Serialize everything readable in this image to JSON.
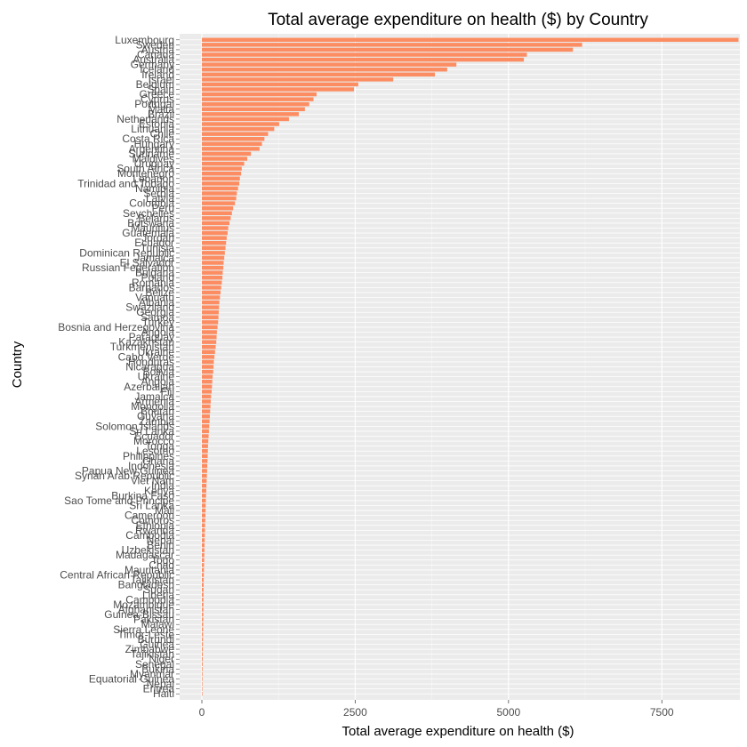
{
  "chart_data": {
    "type": "bar",
    "orientation": "horizontal",
    "title": "Total average expenditure on health ($) by Country",
    "xlabel": "Total average expenditure on health ($)",
    "ylabel": "Country",
    "xlim": [
      0,
      8700
    ],
    "xticks": [
      0,
      2500,
      5000,
      7500
    ],
    "xtick_labels": [
      "0",
      "2500",
      "5000",
      "7500"
    ],
    "grid": true,
    "bar_color": "#fc8d62",
    "panel_color": "#ebebeb",
    "categories": [
      "Luxembourg",
      "Sweden",
      "Austria",
      "Canada",
      "Australia",
      "Germany",
      "Iceland",
      "Ireland",
      "Israel",
      "Belgium",
      "Spain",
      "Greece",
      "Cyprus",
      "Portugal",
      "Malta",
      "Brazil",
      "Netherlands",
      "Estonia",
      "Lithuania",
      "Chile",
      "Costa Rica",
      "Hungary",
      "Argentina",
      "Suriname",
      "Maldives",
      "Uruguay",
      "South Africa",
      "Montenegro",
      "Lebanon",
      "Trinidad and Tobago",
      "Namibia",
      "Serbia",
      "Latvia",
      "Colombia",
      "Peru",
      "Seychelles",
      "Belarus",
      "Botswana",
      "Mauritius",
      "Guatemala",
      "Jordan",
      "Ecuador",
      "Tunisia",
      "Dominican Republic",
      "Jamaica",
      "El Salvador",
      "Russian Federation",
      "Bulgaria",
      "Poland",
      "Romania",
      "Barbados",
      "Belize",
      "Vanuatu",
      "Albania",
      "Swaziland",
      "Georgia",
      "Samoa",
      "Turkey",
      "Bosnia and Herzegovina",
      "Angola",
      "Paraguay",
      "Kazakhstan",
      "Turkmenistan",
      "Ukraine",
      "Cabo Verde",
      "Honduras",
      "Nicaragua",
      "Bolivia",
      "Ukraine",
      "Angola",
      "Azerbaijan",
      "Fiji",
      "Jamaica",
      "Armenia",
      "Mongolia",
      "Bhutan",
      "Guyana",
      "Zambia",
      "Solomon Islands",
      "Sri Lanka",
      "Ecuador",
      "Morocco",
      "Tonga",
      "Lesotho",
      "Philippines",
      "Ghana",
      "Indonesia",
      "Papua New Guinea",
      "Syrian Arab Republic",
      "Viet Nam",
      "India",
      "Kenya",
      "Burkina Faso",
      "Sao Tome and Principe",
      "Sri Lanka",
      "Mali",
      "Cameroon",
      "Comoros",
      "Ethiopia",
      "Rwanda",
      "Cambodia",
      "Nepal",
      "Benin",
      "Uzbekistan",
      "Madagascar",
      "Togo",
      "Chad",
      "Mauritania",
      "Central African Republic",
      "Tajikistan",
      "Bangladesh",
      "Sudan",
      "Liberia",
      "Cambodia",
      "Mozambique",
      "Afghanistan",
      "Guinea-Bissau",
      "Pakistan",
      "Malawi",
      "Sierra Leone",
      "Timor-Leste",
      "Burundi",
      "Guinea",
      "Zimbabwe",
      "Tajikistan",
      "Niger",
      "Senegal",
      "Bukina",
      "Myanmar",
      "Equatorial Guinea",
      "Nepal",
      "Eritrea",
      "Haiti"
    ],
    "values": [
      8750,
      6200,
      6050,
      5300,
      5250,
      4150,
      4000,
      3800,
      3120,
      2550,
      2480,
      1870,
      1820,
      1750,
      1680,
      1580,
      1420,
      1260,
      1180,
      1080,
      1020,
      980,
      940,
      800,
      740,
      690,
      650,
      640,
      620,
      610,
      590,
      570,
      560,
      540,
      510,
      490,
      470,
      450,
      430,
      420,
      405,
      395,
      385,
      375,
      365,
      355,
      350,
      340,
      335,
      325,
      315,
      305,
      295,
      285,
      280,
      275,
      270,
      265,
      255,
      245,
      240,
      235,
      225,
      215,
      205,
      195,
      190,
      185,
      175,
      170,
      165,
      160,
      150,
      145,
      140,
      135,
      130,
      125,
      120,
      115,
      110,
      105,
      100,
      98,
      95,
      92,
      88,
      85,
      82,
      78,
      75,
      72,
      68,
      65,
      62,
      60,
      58,
      55,
      52,
      50,
      48,
      46,
      44,
      42,
      40,
      38,
      36,
      34,
      32,
      30,
      29,
      28,
      27,
      26,
      25,
      24,
      23,
      22,
      21,
      20,
      19,
      18,
      17,
      16,
      15,
      14,
      13,
      12,
      11,
      10,
      9,
      8,
      7
    ]
  }
}
